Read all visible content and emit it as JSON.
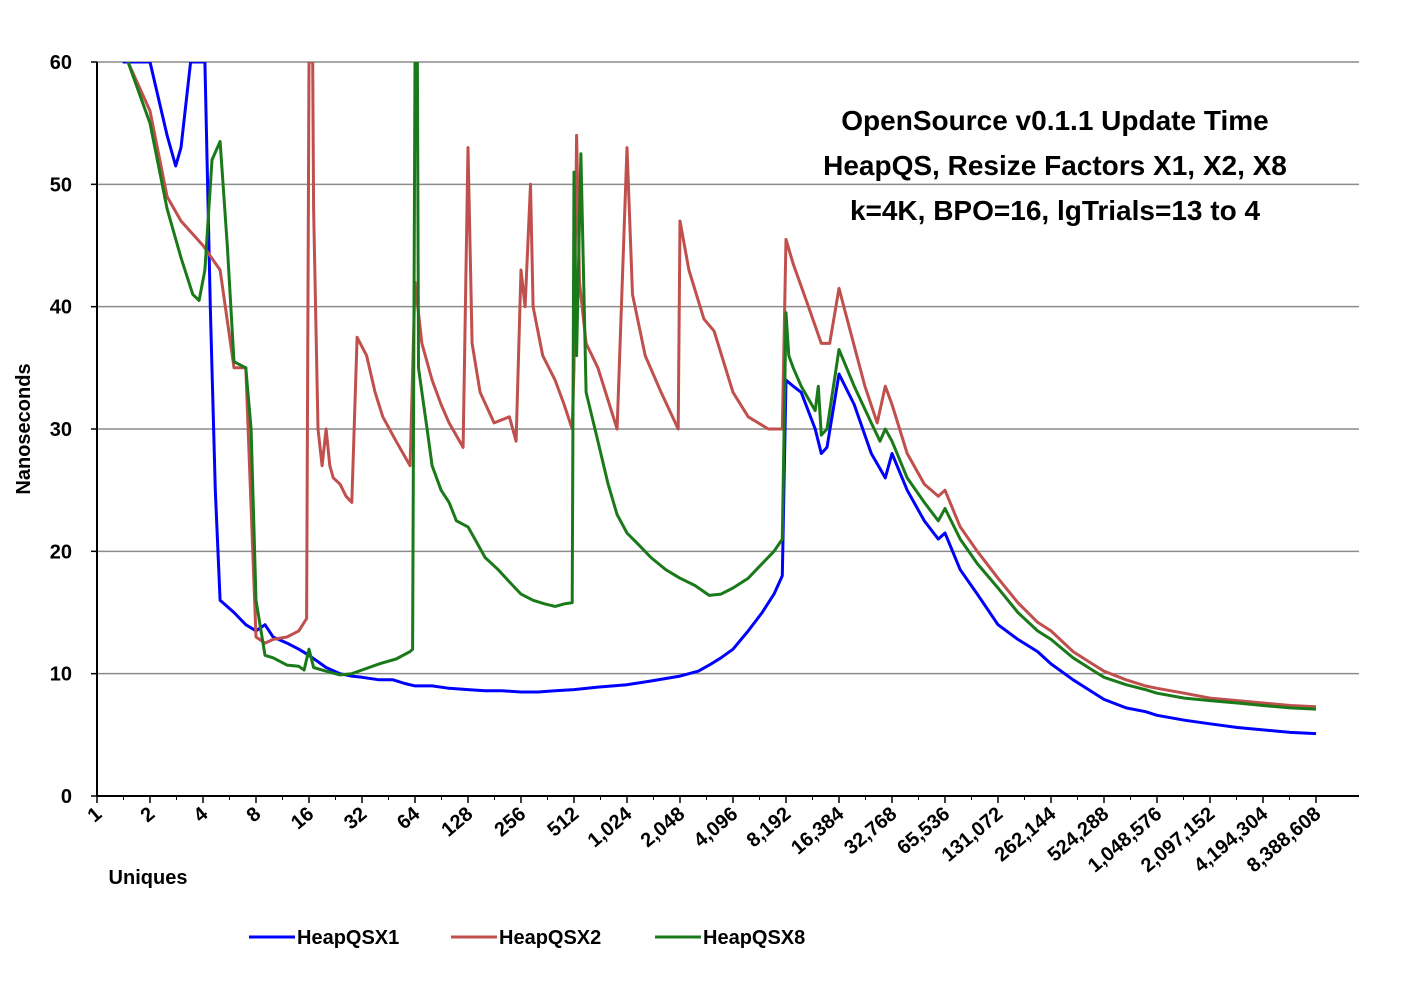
{
  "chart_data": {
    "type": "line",
    "title_lines": [
      "OpenSource v0.1.1 Update Time",
      "HeapQS, Resize Factors X1, X2, X8",
      "k=4K, BPO=16, lgTrials=13 to 4"
    ],
    "xlabel": "Uniques",
    "ylabel": "Nanoseconds",
    "x_scale": "log2",
    "x_ticks": [
      "1",
      "2",
      "4",
      "8",
      "16",
      "32",
      "64",
      "128",
      "256",
      "512",
      "1,024",
      "2,048",
      "4,096",
      "8,192",
      "16,384",
      "32,768",
      "65,536",
      "131,072",
      "262,144",
      "524,288",
      "1,048,576",
      "2,097,152",
      "4,194,304",
      "8,388,608"
    ],
    "y_ticks": [
      "0",
      "10",
      "20",
      "30",
      "40",
      "50",
      "60"
    ],
    "ylim": [
      0,
      60
    ],
    "grid": "horizontal",
    "legend_position": "bottom",
    "series": [
      {
        "name": "HeapQSX1",
        "color": "#0000ff",
        "points": [
          [
            1.4,
            60
          ],
          [
            2,
            60
          ],
          [
            2.5,
            54
          ],
          [
            2.8,
            51.5
          ],
          [
            3,
            53
          ],
          [
            3.4,
            60
          ],
          [
            4.1,
            60
          ],
          [
            4.4,
            40
          ],
          [
            4.7,
            25
          ],
          [
            5,
            16
          ],
          [
            6,
            15
          ],
          [
            7,
            14
          ],
          [
            8,
            13.5
          ],
          [
            9,
            14
          ],
          [
            10,
            13
          ],
          [
            12,
            12.5
          ],
          [
            14,
            12
          ],
          [
            16,
            11.5
          ],
          [
            20,
            10.5
          ],
          [
            24,
            10
          ],
          [
            28,
            9.8
          ],
          [
            32,
            9.7
          ],
          [
            40,
            9.5
          ],
          [
            48,
            9.5
          ],
          [
            56,
            9.2
          ],
          [
            64,
            9.0
          ],
          [
            80,
            9.0
          ],
          [
            100,
            8.8
          ],
          [
            128,
            8.7
          ],
          [
            160,
            8.6
          ],
          [
            200,
            8.6
          ],
          [
            256,
            8.5
          ],
          [
            320,
            8.5
          ],
          [
            400,
            8.6
          ],
          [
            512,
            8.7
          ],
          [
            700,
            8.9
          ],
          [
            1024,
            9.1
          ],
          [
            1400,
            9.4
          ],
          [
            2048,
            9.8
          ],
          [
            2600,
            10.2
          ],
          [
            3000,
            10.7
          ],
          [
            3500,
            11.3
          ],
          [
            4096,
            12
          ],
          [
            5000,
            13.5
          ],
          [
            6000,
            15
          ],
          [
            7000,
            16.5
          ],
          [
            7800,
            18
          ],
          [
            8192,
            34
          ],
          [
            9000,
            33.5
          ],
          [
            10000,
            33
          ],
          [
            12000,
            30
          ],
          [
            13000,
            28
          ],
          [
            14000,
            28.5
          ],
          [
            16384,
            34.5
          ],
          [
            20000,
            32
          ],
          [
            25000,
            28
          ],
          [
            30000,
            26
          ],
          [
            32768,
            28
          ],
          [
            40000,
            25
          ],
          [
            50000,
            22.5
          ],
          [
            60000,
            21
          ],
          [
            65536,
            21.5
          ],
          [
            80000,
            18.5
          ],
          [
            100000,
            16.5
          ],
          [
            131072,
            14
          ],
          [
            170000,
            12.8
          ],
          [
            220000,
            11.8
          ],
          [
            262144,
            10.8
          ],
          [
            350000,
            9.5
          ],
          [
            450000,
            8.5
          ],
          [
            524288,
            7.9
          ],
          [
            700000,
            7.2
          ],
          [
            900000,
            6.9
          ],
          [
            1048576,
            6.6
          ],
          [
            1500000,
            6.2
          ],
          [
            2097152,
            5.9
          ],
          [
            3000000,
            5.6
          ],
          [
            4194304,
            5.4
          ],
          [
            6000000,
            5.2
          ],
          [
            8388608,
            5.1
          ]
        ]
      },
      {
        "name": "HeapQSX2",
        "color": "#c0504d",
        "points": [
          [
            1.5,
            60
          ],
          [
            2,
            56
          ],
          [
            2.5,
            49
          ],
          [
            3,
            47
          ],
          [
            4,
            45
          ],
          [
            5,
            43
          ],
          [
            6,
            35
          ],
          [
            7,
            35
          ],
          [
            8,
            13
          ],
          [
            9,
            12.5
          ],
          [
            10,
            12.8
          ],
          [
            12,
            13
          ],
          [
            14,
            13.5
          ],
          [
            15.5,
            14.5
          ],
          [
            16,
            60
          ],
          [
            16.8,
            60
          ],
          [
            17,
            48
          ],
          [
            18,
            30
          ],
          [
            19,
            27
          ],
          [
            20,
            30
          ],
          [
            21,
            27
          ],
          [
            22,
            26
          ],
          [
            24,
            25.5
          ],
          [
            26,
            24.5
          ],
          [
            28,
            24
          ],
          [
            30,
            37.5
          ],
          [
            34,
            36
          ],
          [
            38,
            33
          ],
          [
            42,
            31
          ],
          [
            50,
            29
          ],
          [
            60,
            27
          ],
          [
            64,
            42
          ],
          [
            70,
            37
          ],
          [
            80,
            34
          ],
          [
            90,
            32
          ],
          [
            100,
            30.5
          ],
          [
            120,
            28.5
          ],
          [
            128,
            53
          ],
          [
            135,
            37
          ],
          [
            150,
            33
          ],
          [
            180,
            30.5
          ],
          [
            220,
            31
          ],
          [
            240,
            29
          ],
          [
            256,
            43
          ],
          [
            270,
            40
          ],
          [
            290,
            50
          ],
          [
            300,
            40
          ],
          [
            340,
            36
          ],
          [
            400,
            34
          ],
          [
            450,
            32
          ],
          [
            500,
            30
          ],
          [
            512,
            35
          ],
          [
            530,
            54
          ],
          [
            550,
            42
          ],
          [
            600,
            37
          ],
          [
            700,
            35
          ],
          [
            900,
            30
          ],
          [
            1024,
            53
          ],
          [
            1100,
            41
          ],
          [
            1300,
            36
          ],
          [
            1600,
            33
          ],
          [
            2000,
            30
          ],
          [
            2048,
            47
          ],
          [
            2300,
            43
          ],
          [
            2800,
            39
          ],
          [
            3200,
            38
          ],
          [
            4096,
            33
          ],
          [
            5000,
            31
          ],
          [
            6500,
            30
          ],
          [
            7800,
            30
          ],
          [
            8192,
            45.5
          ],
          [
            9000,
            43.5
          ],
          [
            11000,
            40
          ],
          [
            13000,
            37
          ],
          [
            14500,
            37
          ],
          [
            16384,
            41.5
          ],
          [
            19000,
            38
          ],
          [
            23000,
            33.5
          ],
          [
            27000,
            30.5
          ],
          [
            30000,
            33.5
          ],
          [
            32768,
            32
          ],
          [
            40000,
            28
          ],
          [
            50000,
            25.5
          ],
          [
            60000,
            24.5
          ],
          [
            65536,
            25
          ],
          [
            80000,
            22
          ],
          [
            100000,
            20
          ],
          [
            131072,
            17.8
          ],
          [
            170000,
            15.8
          ],
          [
            220000,
            14.2
          ],
          [
            262144,
            13.5
          ],
          [
            350000,
            11.8
          ],
          [
            450000,
            10.8
          ],
          [
            524288,
            10.2
          ],
          [
            700000,
            9.5
          ],
          [
            900000,
            9.0
          ],
          [
            1048576,
            8.8
          ],
          [
            1500000,
            8.4
          ],
          [
            2097152,
            8.0
          ],
          [
            3000000,
            7.8
          ],
          [
            4194304,
            7.6
          ],
          [
            6000000,
            7.4
          ],
          [
            8388608,
            7.3
          ]
        ]
      },
      {
        "name": "HeapQSX8",
        "color": "#1a7a1a",
        "points": [
          [
            1.5,
            60
          ],
          [
            2,
            55
          ],
          [
            2.5,
            48
          ],
          [
            3,
            44
          ],
          [
            3.5,
            41
          ],
          [
            3.8,
            40.5
          ],
          [
            4.1,
            43
          ],
          [
            4.5,
            52
          ],
          [
            5,
            53.5
          ],
          [
            5.5,
            45
          ],
          [
            6,
            35.5
          ],
          [
            7,
            35
          ],
          [
            7.5,
            30
          ],
          [
            8,
            16
          ],
          [
            9,
            11.5
          ],
          [
            10,
            11.3
          ],
          [
            12,
            10.7
          ],
          [
            14,
            10.6
          ],
          [
            15,
            10.3
          ],
          [
            16,
            12
          ],
          [
            17,
            10.5
          ],
          [
            20,
            10.2
          ],
          [
            24,
            9.9
          ],
          [
            28,
            10
          ],
          [
            32,
            10.3
          ],
          [
            40,
            10.8
          ],
          [
            50,
            11.2
          ],
          [
            60,
            11.8
          ],
          [
            62,
            12
          ],
          [
            64,
            60
          ],
          [
            66,
            60
          ],
          [
            67,
            35
          ],
          [
            70,
            33
          ],
          [
            75,
            30
          ],
          [
            80,
            27
          ],
          [
            90,
            25
          ],
          [
            100,
            24
          ],
          [
            110,
            22.5
          ],
          [
            128,
            22
          ],
          [
            140,
            21
          ],
          [
            160,
            19.5
          ],
          [
            190,
            18.5
          ],
          [
            220,
            17.5
          ],
          [
            256,
            16.5
          ],
          [
            300,
            16
          ],
          [
            350,
            15.7
          ],
          [
            400,
            15.5
          ],
          [
            450,
            15.7
          ],
          [
            500,
            15.8
          ],
          [
            512,
            51
          ],
          [
            530,
            36
          ],
          [
            560,
            52.5
          ],
          [
            600,
            33
          ],
          [
            700,
            29
          ],
          [
            800,
            25.5
          ],
          [
            900,
            23
          ],
          [
            1024,
            21.5
          ],
          [
            1200,
            20.5
          ],
          [
            1400,
            19.5
          ],
          [
            1700,
            18.5
          ],
          [
            2048,
            17.8
          ],
          [
            2500,
            17.2
          ],
          [
            3000,
            16.4
          ],
          [
            3500,
            16.5
          ],
          [
            4096,
            17
          ],
          [
            5000,
            17.8
          ],
          [
            6000,
            19
          ],
          [
            7000,
            20
          ],
          [
            7800,
            21
          ],
          [
            8192,
            39.5
          ],
          [
            8500,
            36
          ],
          [
            9000,
            35
          ],
          [
            10000,
            33.5
          ],
          [
            12000,
            31.5
          ],
          [
            12500,
            33.5
          ],
          [
            13000,
            29.5
          ],
          [
            14000,
            30
          ],
          [
            16384,
            36.5
          ],
          [
            20000,
            33.5
          ],
          [
            25000,
            30.5
          ],
          [
            28000,
            29
          ],
          [
            30000,
            30
          ],
          [
            32768,
            29
          ],
          [
            40000,
            26
          ],
          [
            50000,
            24
          ],
          [
            60000,
            22.5
          ],
          [
            65536,
            23.5
          ],
          [
            80000,
            21
          ],
          [
            100000,
            19
          ],
          [
            131072,
            17
          ],
          [
            170000,
            15
          ],
          [
            220000,
            13.5
          ],
          [
            262144,
            12.8
          ],
          [
            350000,
            11.3
          ],
          [
            450000,
            10.3
          ],
          [
            524288,
            9.7
          ],
          [
            700000,
            9.1
          ],
          [
            900000,
            8.7
          ],
          [
            1048576,
            8.4
          ],
          [
            1500000,
            8.0
          ],
          [
            2097152,
            7.8
          ],
          [
            3000000,
            7.6
          ],
          [
            4194304,
            7.4
          ],
          [
            6000000,
            7.2
          ],
          [
            8388608,
            7.1
          ]
        ]
      }
    ]
  }
}
